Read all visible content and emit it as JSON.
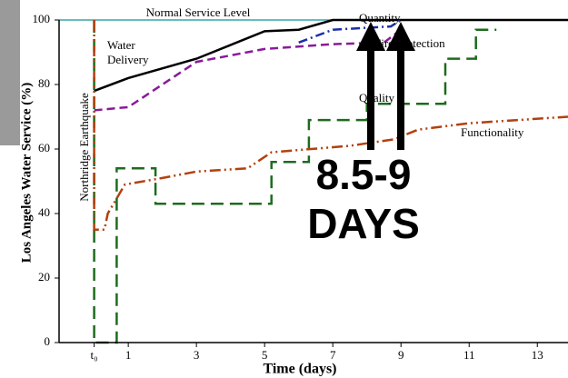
{
  "chart_data": {
    "type": "line",
    "x_label": "Time (days)",
    "y_label": "Los Angeles Water Service (%)",
    "xlim": [
      -1.03,
      13.9
    ],
    "ylim": [
      0,
      100
    ],
    "xticks": [
      {
        "value": 0,
        "label": "t₀"
      },
      1,
      3,
      5,
      7,
      9,
      11,
      13
    ],
    "yticks": [
      0,
      20,
      40,
      60,
      80,
      100
    ],
    "reference_line": {
      "label": "Normal Service Level",
      "value": 100,
      "color": "#3aa6a6"
    },
    "event_label": "Northridge Earthquake",
    "annotation": [
      "8.5-9",
      "DAYS"
    ],
    "series": [
      {
        "name": "Water Delivery",
        "color": "#000000",
        "dash": "",
        "x": [
          0,
          1,
          3,
          5,
          6,
          7,
          13.9
        ],
        "values": [
          78,
          82,
          88,
          96.5,
          97,
          100,
          100
        ]
      },
      {
        "name": "Fire Protection",
        "color": "#1a2ea8",
        "dash": "10,4,2,4",
        "x": [
          6,
          7,
          8.7,
          9
        ],
        "values": [
          93,
          97,
          98,
          100
        ]
      },
      {
        "name": "Quantity",
        "color": "#8a1a9a",
        "dash": "9,5",
        "x": [
          0,
          1,
          2,
          3,
          5,
          7,
          8.5,
          9
        ],
        "values": [
          72,
          73,
          80,
          87,
          91,
          92.5,
          93,
          97
        ]
      },
      {
        "name": "Quality",
        "color": "#1e6b1e",
        "dash": "14,7",
        "x": [
          0,
          0,
          0.66,
          0.66,
          1.8,
          1.8,
          5.2,
          5.2,
          6.3,
          6.3,
          8,
          8,
          10.3,
          10.3,
          11.2,
          11.2,
          11.8
        ],
        "values": [
          100,
          0,
          0,
          54,
          54,
          43,
          43,
          56,
          56,
          69,
          69,
          74,
          74,
          88,
          88,
          97,
          97
        ]
      },
      {
        "name": "Functionality",
        "color": "#b2400e",
        "dash": "12,4,2,4,2,4",
        "x": [
          0,
          0,
          0.3,
          0.4,
          0.9,
          2,
          3,
          4.5,
          5.2,
          7.5,
          8.8,
          9.5,
          11,
          13.9
        ],
        "values": [
          100,
          35,
          35,
          40,
          49,
          51,
          53,
          54,
          59,
          61,
          63,
          66,
          68,
          70
        ]
      }
    ]
  }
}
